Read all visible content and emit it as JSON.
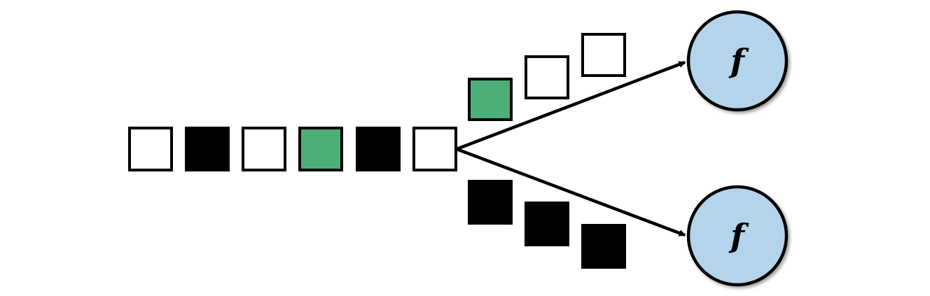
{
  "diagram": {
    "description_free": true,
    "colors": {
      "white": "#ffffff",
      "black": "#000000",
      "green": "#4caf7a",
      "node_fill": "#b3d4ea",
      "stroke": "#000000"
    },
    "stream": {
      "items": [
        "white",
        "black",
        "white",
        "green",
        "black",
        "white"
      ]
    },
    "upper_branch": {
      "items": [
        "green",
        "white",
        "white"
      ]
    },
    "lower_branch": {
      "items": [
        "black",
        "black",
        "black"
      ]
    },
    "nodes": {
      "upper": {
        "label": "f"
      },
      "lower": {
        "label": "f"
      }
    }
  }
}
